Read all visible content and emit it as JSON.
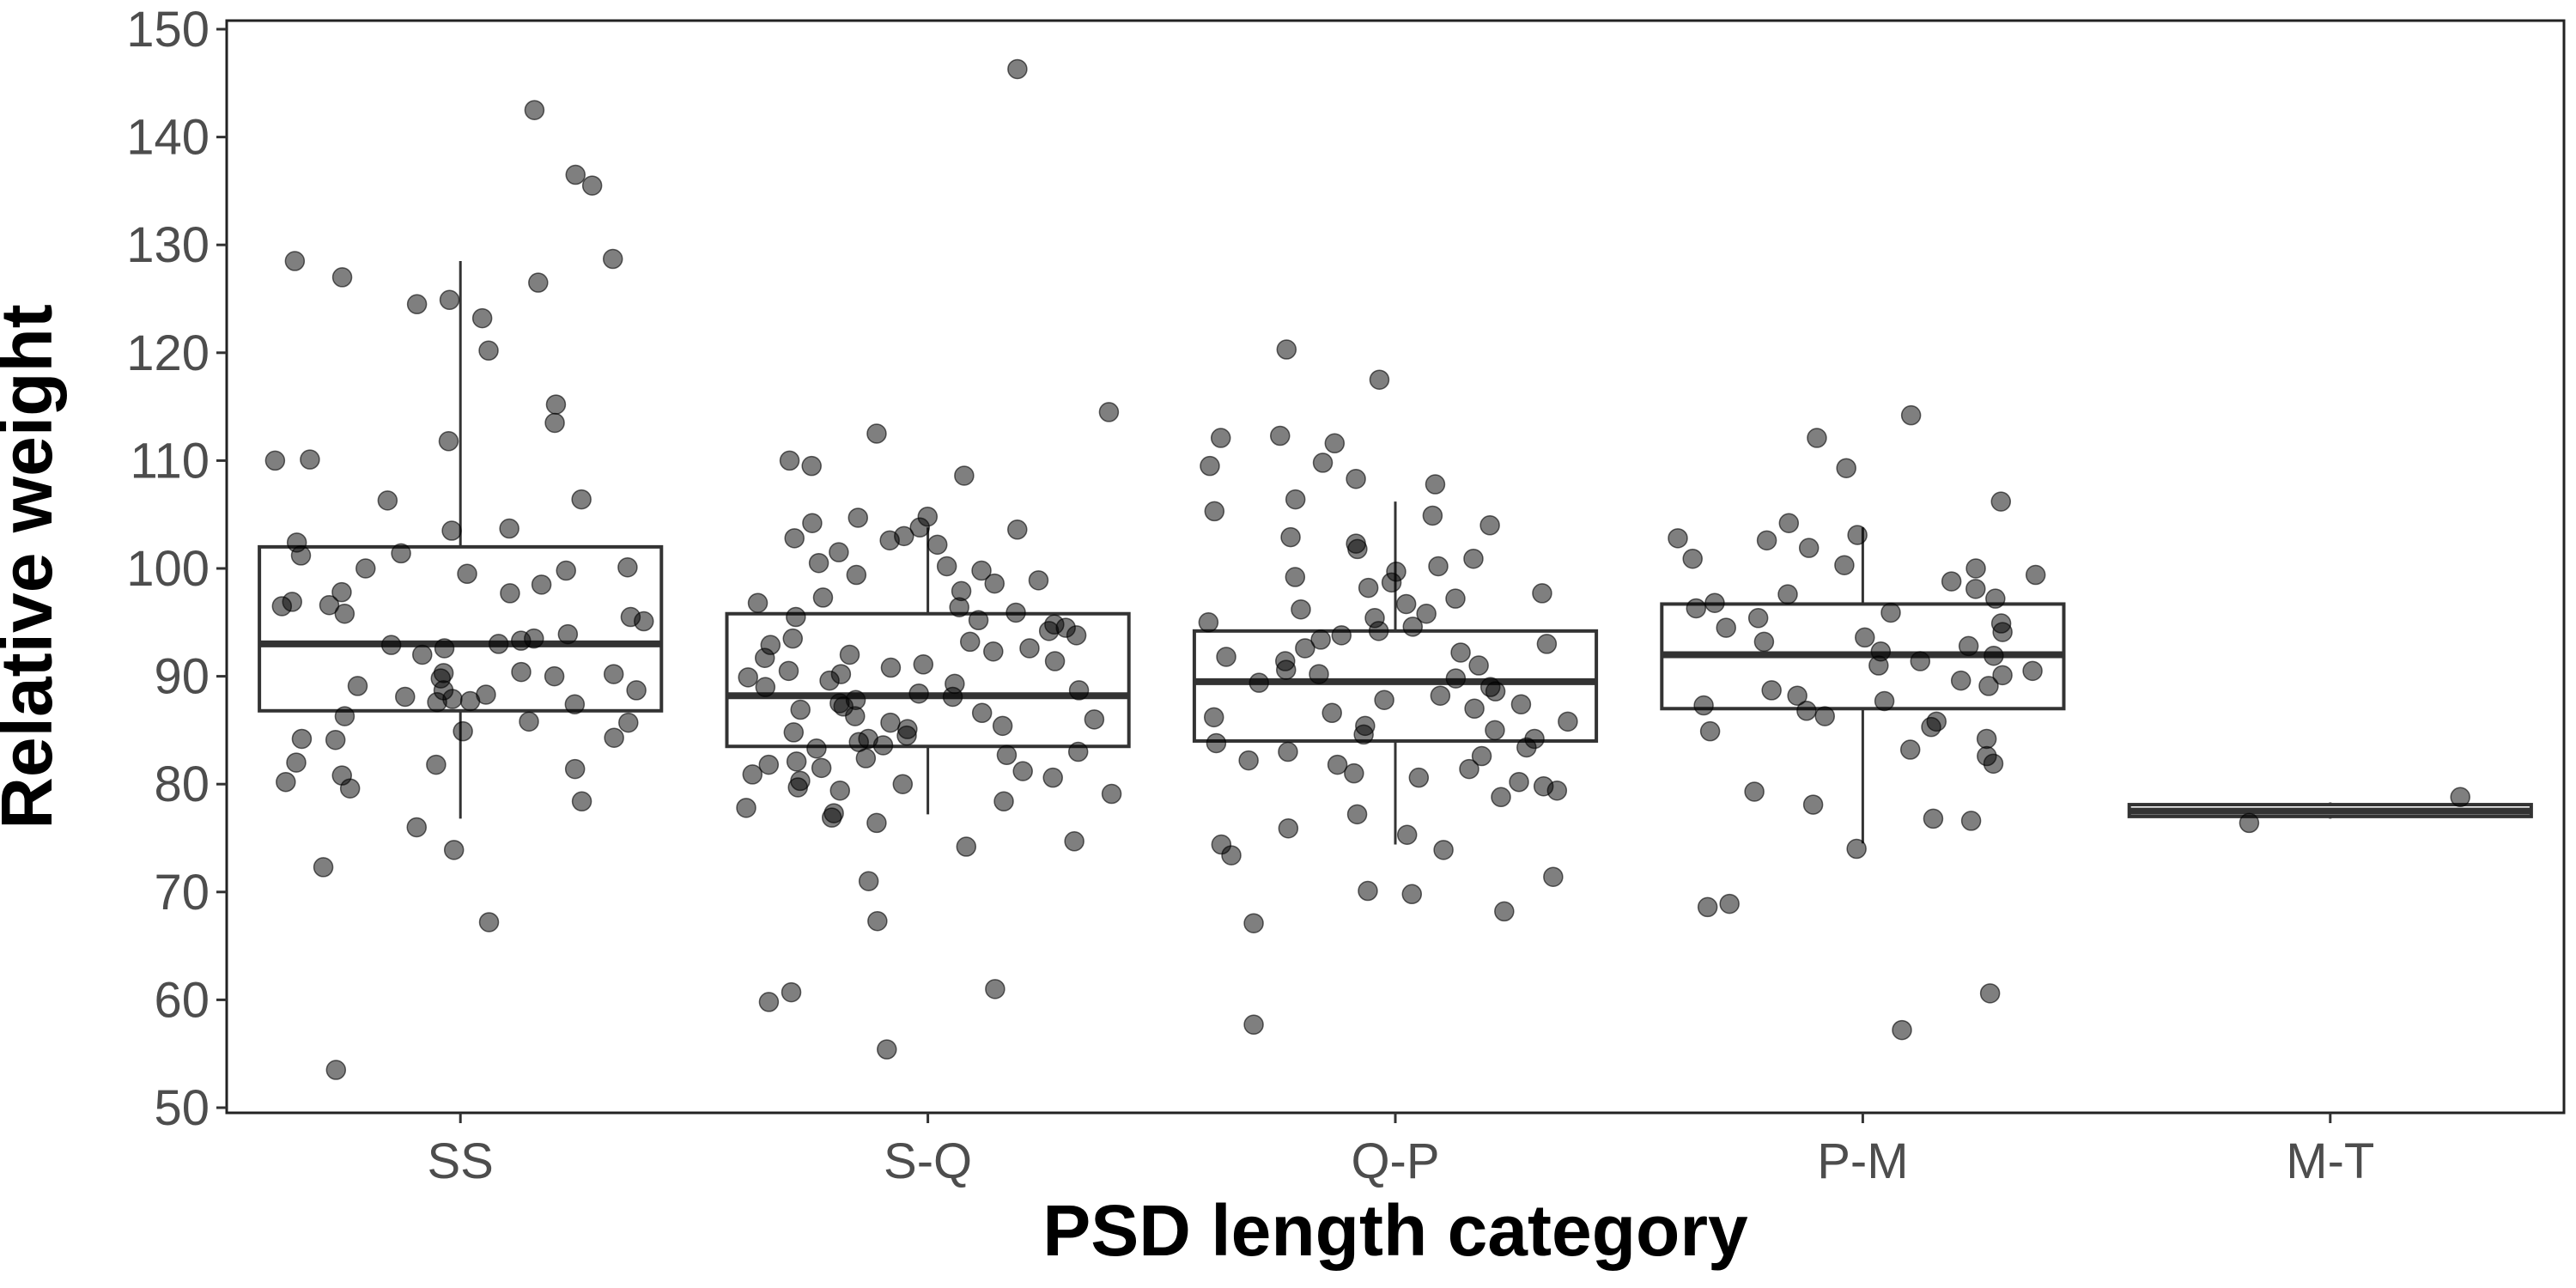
{
  "chart_data": {
    "type": "boxplot",
    "xlabel": "PSD length category",
    "ylabel": "Relative weight",
    "ylim": [
      50,
      150
    ],
    "y_ticks": [
      50,
      60,
      70,
      80,
      90,
      100,
      110,
      120,
      130,
      140,
      150
    ],
    "grid": false,
    "legend": "none",
    "categories": [
      "SS",
      "S-Q",
      "Q-P",
      "P-M",
      "M-T"
    ],
    "boxes": [
      {
        "category": "SS",
        "whisker_low": 76.8,
        "q1": 86.8,
        "median": 93.0,
        "q3": 102.0,
        "whisker_high": 128.5
      },
      {
        "category": "S-Q",
        "whisker_low": 77.2,
        "q1": 83.5,
        "median": 88.2,
        "q3": 95.8,
        "whisker_high": 103.8
      },
      {
        "category": "Q-P",
        "whisker_low": 74.4,
        "q1": 84.0,
        "median": 89.5,
        "q3": 94.2,
        "whisker_high": 106.2
      },
      {
        "category": "P-M",
        "whisker_low": 74.5,
        "q1": 87.0,
        "median": 92.0,
        "q3": 96.7,
        "whisker_high": 103.8
      },
      {
        "category": "M-T",
        "whisker_low": 76.8,
        "q1": 77.0,
        "median": 77.5,
        "q3": 78.1,
        "whisker_high": 78.3
      }
    ],
    "points": [
      {
        "category": "SS",
        "y": [
          142.5,
          136.5,
          135.5,
          128.7,
          128.5,
          127.0,
          126.5,
          124.9,
          124.5,
          123.2,
          120.2,
          115.2,
          113.5,
          111.8,
          110.1,
          110.0,
          106.4,
          106.3,
          103.7,
          103.5,
          102.4,
          101.4,
          101.2,
          100.1,
          100.0,
          99.8,
          99.5,
          98.5,
          97.8,
          97.7,
          96.9,
          96.6,
          96.5,
          95.8,
          95.5,
          95.1,
          93.9,
          93.5,
          93.3,
          93.0,
          92.9,
          92.6,
          92.0,
          90.4,
          90.3,
          90.2,
          90.0,
          89.8,
          89.1,
          88.7,
          88.7,
          88.3,
          88.1,
          87.9,
          87.7,
          87.6,
          87.4,
          86.3,
          85.8,
          85.7,
          84.9,
          84.3,
          84.2,
          84.1,
          82.0,
          81.8,
          81.4,
          80.8,
          80.2,
          79.6,
          78.4,
          76.0,
          73.9,
          72.3,
          67.2,
          53.5
        ]
      },
      {
        "category": "S-Q",
        "y": [
          146.3,
          114.5,
          112.5,
          110.0,
          109.5,
          108.6,
          104.8,
          104.7,
          104.2,
          103.8,
          103.6,
          103.0,
          102.8,
          102.6,
          102.2,
          101.5,
          100.5,
          100.2,
          99.8,
          99.4,
          98.9,
          98.6,
          97.9,
          97.3,
          96.8,
          96.4,
          95.9,
          95.5,
          95.2,
          94.8,
          94.5,
          94.2,
          93.8,
          93.5,
          93.2,
          92.9,
          92.6,
          92.3,
          92.0,
          91.7,
          91.4,
          91.1,
          90.8,
          90.5,
          90.2,
          89.9,
          89.6,
          89.3,
          89.0,
          88.7,
          88.4,
          88.1,
          87.8,
          87.5,
          87.2,
          86.9,
          86.6,
          86.3,
          86.0,
          85.7,
          85.4,
          85.1,
          84.8,
          84.5,
          84.2,
          83.9,
          83.6,
          83.3,
          83.0,
          82.7,
          82.4,
          82.1,
          81.8,
          81.5,
          81.2,
          80.9,
          80.6,
          80.3,
          80.0,
          79.7,
          79.4,
          79.1,
          78.4,
          77.8,
          77.3,
          76.9,
          76.4,
          74.7,
          74.2,
          71.0,
          67.3,
          61.0,
          60.7,
          59.8,
          55.4
        ]
      },
      {
        "category": "Q-P",
        "y": [
          120.3,
          117.5,
          112.3,
          112.1,
          111.6,
          109.8,
          109.5,
          108.3,
          107.8,
          106.4,
          105.3,
          104.9,
          104.0,
          102.9,
          102.3,
          101.8,
          100.9,
          100.2,
          99.7,
          99.2,
          98.7,
          98.2,
          97.7,
          97.2,
          96.7,
          96.2,
          95.8,
          95.4,
          95.0,
          94.6,
          94.2,
          93.8,
          93.4,
          93.0,
          92.6,
          92.2,
          91.8,
          91.4,
          91.0,
          90.6,
          90.2,
          89.8,
          89.4,
          89.0,
          88.6,
          88.2,
          87.8,
          87.4,
          87.0,
          86.6,
          86.2,
          85.8,
          85.4,
          85.0,
          84.6,
          84.2,
          83.8,
          83.4,
          83.0,
          82.6,
          82.2,
          81.8,
          81.4,
          81.0,
          80.6,
          80.2,
          79.8,
          79.4,
          78.8,
          77.2,
          75.9,
          75.3,
          74.4,
          73.9,
          73.4,
          71.4,
          70.1,
          69.8,
          68.2,
          67.1,
          57.7
        ]
      },
      {
        "category": "P-M",
        "y": [
          114.2,
          112.1,
          109.3,
          106.2,
          104.2,
          103.1,
          102.8,
          102.6,
          101.9,
          100.9,
          100.3,
          100.0,
          99.4,
          98.8,
          98.1,
          97.6,
          97.2,
          96.8,
          96.3,
          95.9,
          95.4,
          94.9,
          94.5,
          94.1,
          93.6,
          93.2,
          92.8,
          92.3,
          91.9,
          91.4,
          91.0,
          90.5,
          90.1,
          89.6,
          89.1,
          88.7,
          88.2,
          87.7,
          87.3,
          86.8,
          86.3,
          85.8,
          85.3,
          84.9,
          84.2,
          83.2,
          82.6,
          81.9,
          79.3,
          78.1,
          76.8,
          76.6,
          74.0,
          68.9,
          68.6,
          60.6,
          57.2
        ]
      },
      {
        "category": "M-T",
        "y": [
          78.8,
          76.4
        ]
      }
    ]
  }
}
